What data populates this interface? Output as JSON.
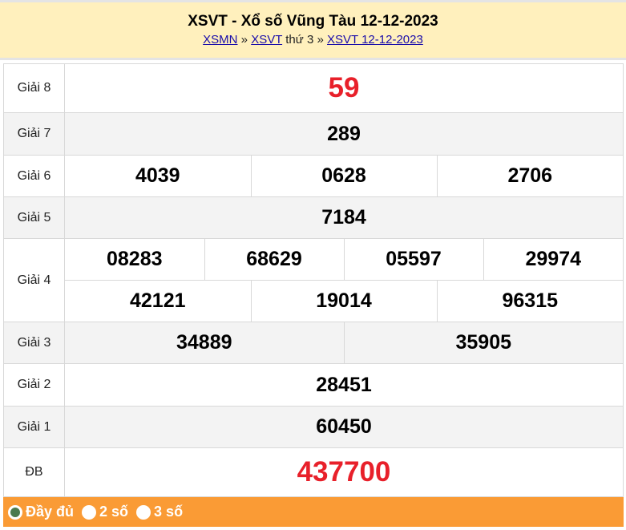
{
  "header": {
    "title": "XSVT - Xổ số Vũng Tàu 12-12-2023",
    "crumb": {
      "link1": "XSMN",
      "sep1": "»",
      "link2": "XSVT",
      "text": "thứ 3",
      "sep2": "»",
      "link3": "XSVT 12-12-2023"
    }
  },
  "prizes": {
    "g8": {
      "label": "Giải 8",
      "values": [
        "59"
      ]
    },
    "g7": {
      "label": "Giải 7",
      "values": [
        "289"
      ]
    },
    "g6": {
      "label": "Giải 6",
      "values": [
        "4039",
        "0628",
        "2706"
      ]
    },
    "g5": {
      "label": "Giải 5",
      "values": [
        "7184"
      ]
    },
    "g4": {
      "label": "Giải 4",
      "values": [
        "08283",
        "68629",
        "05597",
        "29974",
        "42121",
        "19014",
        "96315"
      ]
    },
    "g3": {
      "label": "Giải 3",
      "values": [
        "34889",
        "35905"
      ]
    },
    "g2": {
      "label": "Giải 2",
      "values": [
        "28451"
      ]
    },
    "g1": {
      "label": "Giải 1",
      "values": [
        "60450"
      ]
    },
    "db": {
      "label": "ĐB",
      "values": [
        "437700"
      ]
    }
  },
  "footer": {
    "options": [
      {
        "label": "Đầy đủ",
        "selected": true
      },
      {
        "label": "2 số",
        "selected": false
      },
      {
        "label": "3 số",
        "selected": false
      }
    ]
  },
  "colors": {
    "header_bg": "#fff0bd",
    "footer_bg": "#fa9b35",
    "highlight": "#e8202a"
  }
}
